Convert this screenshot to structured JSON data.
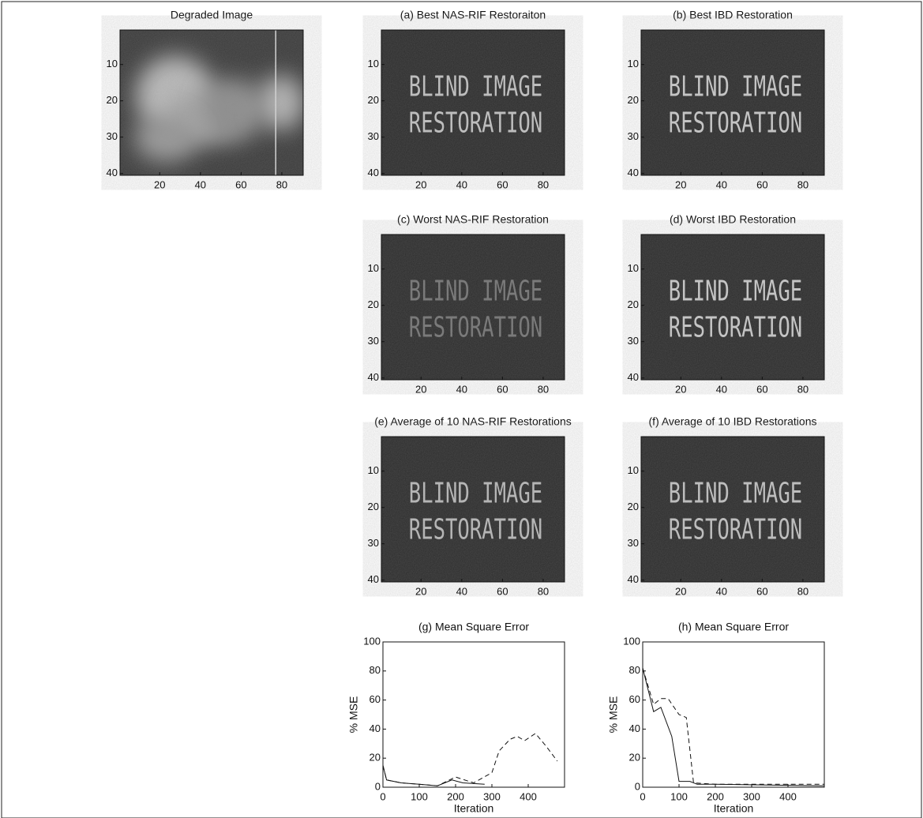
{
  "chart_data": [
    {
      "type": "image",
      "title": "Degraded Image",
      "xlim": [
        0.5,
        90.5
      ],
      "ylim": [
        0.5,
        40.5
      ],
      "xticks": [
        20,
        40,
        60,
        80
      ],
      "yticks": [
        10,
        20,
        30,
        40
      ],
      "blurred": true
    },
    {
      "type": "image",
      "title": "(a) Best NAS-RIF Restoraiton",
      "xlim": [
        0.5,
        90.5
      ],
      "ylim": [
        0.5,
        40.5
      ],
      "xticks": [
        20,
        40,
        60,
        80
      ],
      "yticks": [
        10,
        20,
        30,
        40
      ],
      "image_text": [
        "BLIND IMAGE",
        "RESTORATION"
      ],
      "text_color": "#bdbdbd"
    },
    {
      "type": "image",
      "title": "(b) Best IBD Restoration",
      "xlim": [
        0.5,
        90.5
      ],
      "ylim": [
        0.5,
        40.5
      ],
      "xticks": [
        20,
        40,
        60,
        80
      ],
      "yticks": [
        10,
        20,
        30,
        40
      ],
      "image_text": [
        "BLIND IMAGE",
        "RESTORATION"
      ],
      "text_color": "#c4c4c4"
    },
    {
      "type": "image",
      "title": "(c) Worst NAS-RIF Restoration",
      "xlim": [
        0.5,
        90.5
      ],
      "ylim": [
        0.5,
        40.5
      ],
      "xticks": [
        20,
        40,
        60,
        80
      ],
      "yticks": [
        10,
        20,
        30,
        40
      ],
      "image_text": [
        "BLIND IMAGE",
        "RESTORATION"
      ],
      "text_color": "#7a7a7a"
    },
    {
      "type": "image",
      "title": "(d) Worst IBD Restoration",
      "xlim": [
        0.5,
        90.5
      ],
      "ylim": [
        0.5,
        40.5
      ],
      "xticks": [
        20,
        40,
        60,
        80
      ],
      "yticks": [
        10,
        20,
        30,
        40
      ],
      "image_text": [
        "BLIND IMAGE",
        "RESTORATION"
      ],
      "text_color": "#c4c4c4"
    },
    {
      "type": "image",
      "title": "(e) Average of 10 NAS-RIF Restorations",
      "xlim": [
        0.5,
        90.5
      ],
      "ylim": [
        0.5,
        40.5
      ],
      "xticks": [
        20,
        40,
        60,
        80
      ],
      "yticks": [
        10,
        20,
        30,
        40
      ],
      "image_text": [
        "BLIND IMAGE",
        "RESTORATION"
      ],
      "text_color": "#b5b5b5"
    },
    {
      "type": "image",
      "title": "(f) Average of 10 IBD Restorations",
      "xlim": [
        0.5,
        90.5
      ],
      "ylim": [
        0.5,
        40.5
      ],
      "xticks": [
        20,
        40,
        60,
        80
      ],
      "yticks": [
        10,
        20,
        30,
        40
      ],
      "image_text": [
        "BLIND IMAGE",
        "RESTORATION"
      ],
      "text_color": "#bdbdbd"
    },
    {
      "type": "line",
      "title": "(g) Mean Square Error",
      "x_label": "Iteration",
      "y_label": "% MSE",
      "xlim": [
        0,
        500
      ],
      "ylim": [
        0,
        100
      ],
      "xticks": [
        0,
        100,
        200,
        300,
        400
      ],
      "yticks": [
        0,
        20,
        40,
        60,
        80,
        100
      ],
      "series": [
        {
          "color": "#111111",
          "style": "solid",
          "x": [
            0,
            10,
            50,
            100,
            150,
            190,
            220,
            280
          ],
          "values": [
            15,
            5,
            3,
            2,
            1,
            5,
            3,
            2
          ]
        },
        {
          "color": "#111111",
          "style": "dashed",
          "x": [
            0,
            10,
            50,
            100,
            150,
            200,
            250,
            300,
            320,
            350,
            370,
            390,
            420,
            450,
            480
          ],
          "values": [
            15,
            5,
            3,
            2,
            1,
            7,
            3,
            10,
            25,
            33,
            35,
            32,
            37,
            28,
            18
          ]
        }
      ]
    },
    {
      "type": "line",
      "title": "(h) Mean Square Error",
      "x_label": "Iteration",
      "y_label": "% MSE",
      "xlim": [
        0,
        500
      ],
      "ylim": [
        0,
        100
      ],
      "xticks": [
        0,
        100,
        200,
        300,
        400
      ],
      "yticks": [
        0,
        20,
        40,
        60,
        80,
        100
      ],
      "series": [
        {
          "color": "#111111",
          "style": "solid",
          "x": [
            0,
            30,
            50,
            80,
            100,
            130,
            150,
            200,
            500
          ],
          "values": [
            82,
            52,
            55,
            35,
            4,
            4,
            2,
            2,
            1
          ]
        },
        {
          "color": "#111111",
          "style": "dashed",
          "x": [
            0,
            30,
            50,
            70,
            100,
            120,
            140,
            200,
            500
          ],
          "values": [
            82,
            57,
            61,
            61,
            50,
            48,
            3,
            2,
            2
          ]
        }
      ]
    }
  ]
}
